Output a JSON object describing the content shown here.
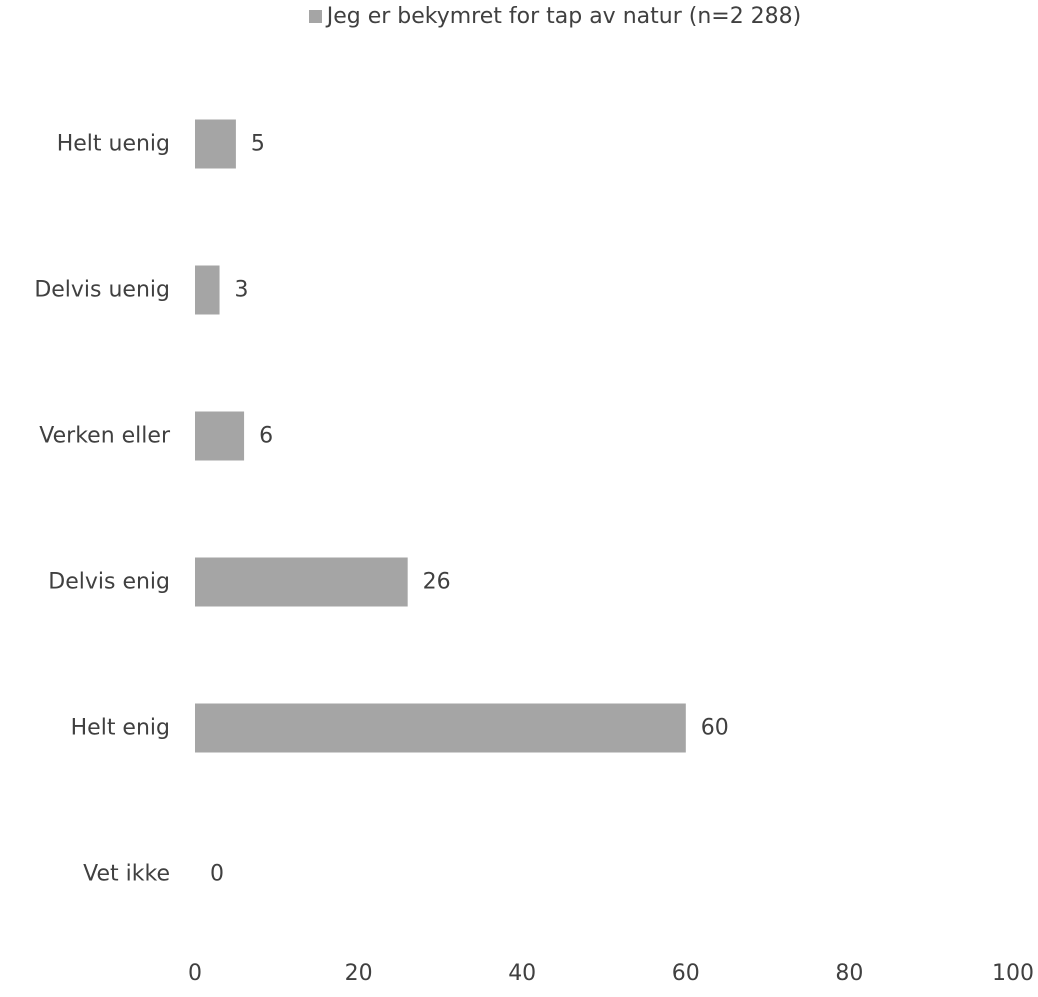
{
  "chart_data": {
    "type": "bar",
    "orientation": "horizontal",
    "categories": [
      "Helt uenig",
      "Delvis uenig",
      "Verken eller",
      "Delvis enig",
      "Helt enig",
      "Vet ikke"
    ],
    "series": [
      {
        "name": "Jeg er bekymret for tap av natur (n=2 288)",
        "values": [
          5,
          3,
          6,
          26,
          60,
          0
        ],
        "color": "#a5a5a5"
      }
    ],
    "xlim": [
      0,
      100
    ],
    "xticks": [
      0,
      20,
      40,
      60,
      80,
      100
    ],
    "data_labels": [
      "5",
      "3",
      "6",
      "26",
      "60",
      "0"
    ],
    "grid": false,
    "legend_position": "top"
  }
}
